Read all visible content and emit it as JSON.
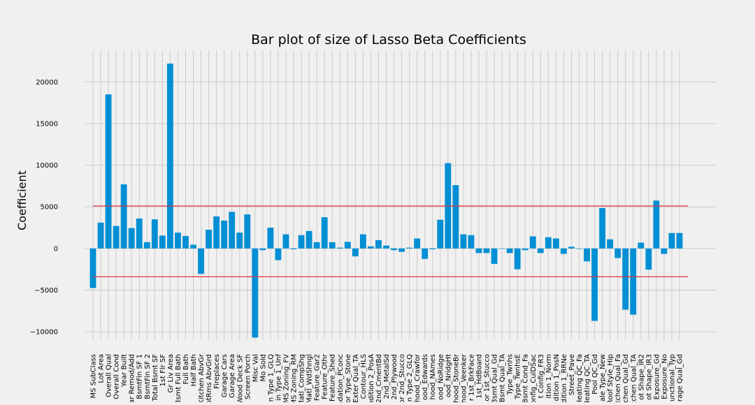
{
  "chart_data": {
    "type": "bar",
    "title": "Bar plot of size of Lasso Beta Coefficients",
    "xlabel": "",
    "ylabel": "Coefficient",
    "ylim": [
      -11000,
      23800
    ],
    "yticks": [
      -10000,
      -5000,
      0,
      5000,
      10000,
      15000,
      20000
    ],
    "ytick_labels": [
      "−10000",
      "−5000",
      "0",
      "5000",
      "10000",
      "15000",
      "20000"
    ],
    "grid": true,
    "bar_color": "#008fd5",
    "line_color": "#e5303a",
    "grid_color": "#cbcbcb",
    "background_color": "#f0f0f0",
    "reference_lines": [
      5100,
      -3400
    ],
    "categories": [
      "MS SubClass",
      "Lot Area",
      "Overall Qual",
      "Overall Cond",
      "Year Built",
      "ar Remod/Add",
      "BsmtFin SF 1",
      "BsmtFin SF 2",
      "Total Bsmt SF",
      "1st Flr SF",
      "Gr Liv Area",
      "Bsmt Full Bath",
      "Full Bath",
      "Half Bath",
      "Kitchen AbvGr",
      "otRms AbvGrd",
      "Fireplaces",
      "Garage Cars",
      "Garage Area",
      "Wood Deck SF",
      "Screen Porch",
      "Misc Val",
      "Mo Sold",
      "n Type 1_GLQ",
      "in Type 1_Unf",
      "MS Zoning_FV",
      "MS Zoning_RM",
      "Matl_CompShg",
      "Matl_WdShngl",
      "Feature_Gar2",
      "Feature_Othr",
      "Feature_Shed",
      "ndation_PConc",
      "or Type_Stone",
      "Exter Qual_TA",
      "Contour_HLS",
      "ndition 2_PosA",
      "2nd_CmentBd",
      "2nd_MetalSd",
      "2nd_Plywood",
      "or 2nd_Stucco",
      "n Type 2_GLQ",
      "hood_Crawfor",
      "ood_Edwards",
      "hood_NAmes",
      "ood_NoRidge",
      "ood_NridgHt",
      "hood_StoneBr",
      "hood_Veenker",
      "r 1st_BrkFace",
      "1st_HdBoard",
      "or 1st_Stucco",
      "3smt Qual_Gd",
      "Bsmt Qual_TA",
      "Type_Twnhs",
      "Type_TwnhsE",
      "Bsmt Cond_Fa",
      "onfig_CulDSac",
      "t Config_FR3",
      "ition 1_Norm",
      "dition 1_PosN",
      "dition 1_RRNe",
      "Street_Pave",
      "Heating QC_Fa",
      "Heating QC_TA",
      "Pool QC_Gd",
      "ale Type_New",
      "Roof Style_Hip",
      "tchen Qual_Fa",
      "tchen Qual_Gd",
      "tchen Qual_TA",
      "ot Shape_IR2",
      "ot Shape_IR3",
      "Exposure_Gd",
      "Exposure_No",
      "unctional_Typ",
      "rage Qual_Gd"
    ],
    "values": [
      -4750,
      3100,
      18500,
      2700,
      7700,
      2450,
      3600,
      750,
      3500,
      1550,
      22200,
      1900,
      1500,
      450,
      -3050,
      2250,
      3850,
      3350,
      4400,
      1900,
      4100,
      -10700,
      -200,
      2500,
      -1400,
      1700,
      -100,
      1600,
      2100,
      750,
      3750,
      750,
      100,
      800,
      -950,
      1700,
      250,
      1000,
      350,
      -200,
      -400,
      100,
      1200,
      -1250,
      -100,
      3450,
      10250,
      7600,
      1700,
      1600,
      -550,
      -550,
      -1850,
      -50,
      -550,
      -2500,
      -200,
      1450,
      -550,
      1350,
      1200,
      -650,
      200,
      -50,
      -1550,
      -8700,
      4850,
      1100,
      -1150,
      -7350,
      -7950,
      700,
      -2550,
      5750,
      -650,
      1850,
      1850
    ]
  }
}
